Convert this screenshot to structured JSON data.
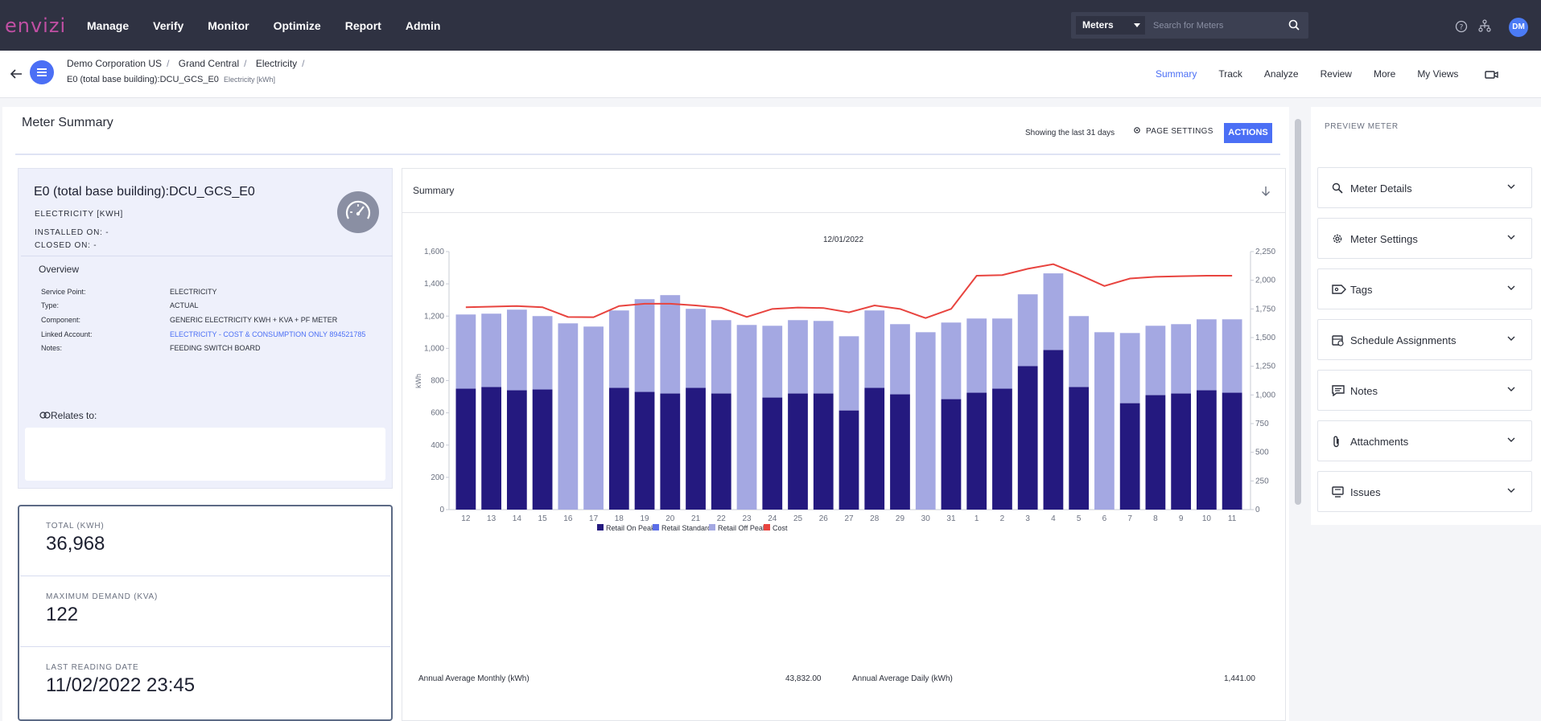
{
  "app": {
    "logo": "envizi"
  },
  "nav": {
    "items": [
      "Manage",
      "Verify",
      "Monitor",
      "Optimize",
      "Report",
      "Admin"
    ]
  },
  "search": {
    "scope": "Meters",
    "placeholder": "Search for Meters"
  },
  "user": {
    "initials": "DM"
  },
  "breadcrumb": {
    "items": [
      "Demo Corporation US",
      "Grand Central",
      "Electricity"
    ],
    "meter": "E0 (total base building):DCU_GCS_E0",
    "meter_unit": "Electricity [kWh]"
  },
  "view_tabs": {
    "items": [
      "Summary",
      "Track",
      "Analyze",
      "Review",
      "More",
      "My Views"
    ],
    "active": "Summary"
  },
  "page": {
    "title": "Meter Summary",
    "showing": "Showing the last 31 days",
    "page_settings": "PAGE SETTINGS",
    "actions": "ACTIONS"
  },
  "meter_card": {
    "name": "E0 (total base building):DCU_GCS_E0",
    "type": "ELECTRICITY [KWH]",
    "installed": "INSTALLED ON: -",
    "closed": "CLOSED ON: -",
    "overview_title": "Overview",
    "overview": [
      {
        "label": "Service Point:",
        "value": "ELECTRICITY"
      },
      {
        "label": "Type:",
        "value": "ACTUAL"
      },
      {
        "label": "Component:",
        "value": "GENERIC ELECTRICITY KWH + KVA + PF METER"
      },
      {
        "label": "Linked Account:",
        "value": "ELECTRICITY - COST & CONSUMPTION ONLY 894521785"
      },
      {
        "label": "Notes:",
        "value": "FEEDING SWITCH BOARD"
      }
    ],
    "relates_to": "Relates to:"
  },
  "stats": [
    {
      "label": "TOTAL (KWH)",
      "value": "36,968"
    },
    {
      "label": "MAXIMUM DEMAND (KVA)",
      "value": "122"
    },
    {
      "label": "LAST READING DATE",
      "value": "11/02/2022 23:45"
    }
  ],
  "chart_panel": {
    "title": "Summary",
    "annual_monthly_label": "Annual Average Monthly (kWh)",
    "annual_monthly_value": "43,832.00",
    "annual_daily_label": "Annual Average Daily (kWh)",
    "annual_daily_value": "1,441.00"
  },
  "chart_data": {
    "type": "bar",
    "title": "12/01/2022",
    "ylabel": "kWh",
    "ylim": [
      0,
      1600
    ],
    "y_ticks": [
      "0",
      "200",
      "400",
      "600",
      "800",
      "1,000",
      "1,200",
      "1,400",
      "1,600"
    ],
    "y2lim": [
      0,
      2250
    ],
    "y2_ticks": [
      "0",
      "250",
      "500",
      "750",
      "1,000",
      "1,250",
      "1,500",
      "1,750",
      "2,000",
      "2,250"
    ],
    "categories": [
      "12",
      "13",
      "14",
      "15",
      "16",
      "17",
      "18",
      "19",
      "20",
      "21",
      "22",
      "23",
      "24",
      "25",
      "26",
      "27",
      "28",
      "29",
      "30",
      "31",
      "1",
      "2",
      "3",
      "4",
      "5",
      "6",
      "7",
      "8",
      "9",
      "10",
      "11"
    ],
    "series": [
      {
        "name": "Retail On Peak",
        "color": "#24197f",
        "values": [
          750,
          760,
          740,
          745,
          0,
          0,
          755,
          730,
          720,
          755,
          720,
          0,
          695,
          720,
          720,
          615,
          755,
          715,
          0,
          685,
          725,
          750,
          890,
          990,
          760,
          0,
          660,
          710,
          720,
          740,
          725
        ]
      },
      {
        "name": "Retail Standard",
        "color": "#5b6ee8",
        "values": [
          0,
          0,
          0,
          0,
          0,
          0,
          0,
          0,
          0,
          0,
          0,
          0,
          0,
          0,
          0,
          0,
          0,
          0,
          0,
          0,
          0,
          0,
          0,
          0,
          0,
          0,
          0,
          0,
          0,
          0,
          0
        ]
      },
      {
        "name": "Retail Off Peak",
        "color": "#a4a8e2",
        "values": [
          460,
          455,
          500,
          455,
          1155,
          1135,
          480,
          575,
          610,
          490,
          455,
          1145,
          445,
          455,
          450,
          460,
          480,
          435,
          1100,
          475,
          460,
          435,
          445,
          475,
          440,
          1100,
          435,
          430,
          430,
          440,
          455
        ]
      },
      {
        "name": "Cost",
        "color": "#e8443f",
        "axis": "right",
        "values": [
          1765,
          1770,
          1775,
          1765,
          1680,
          1678,
          1775,
          1795,
          1795,
          1780,
          1760,
          1680,
          1750,
          1762,
          1758,
          1720,
          1780,
          1750,
          1670,
          1750,
          2040,
          2045,
          2100,
          2140,
          2050,
          1950,
          2015,
          2030,
          2035,
          2040,
          2040
        ]
      }
    ],
    "legend_position": "bottom"
  },
  "preview": {
    "title": "PREVIEW METER",
    "sections": [
      {
        "label": "Meter Details",
        "icon": "search-icon"
      },
      {
        "label": "Meter Settings",
        "icon": "gear-icon"
      },
      {
        "label": "Tags",
        "icon": "tag-icon"
      },
      {
        "label": "Schedule Assignments",
        "icon": "calendar-icon"
      },
      {
        "label": "Notes",
        "icon": "note-icon"
      },
      {
        "label": "Attachments",
        "icon": "paperclip-icon"
      },
      {
        "label": "Issues",
        "icon": "issue-icon"
      }
    ]
  }
}
